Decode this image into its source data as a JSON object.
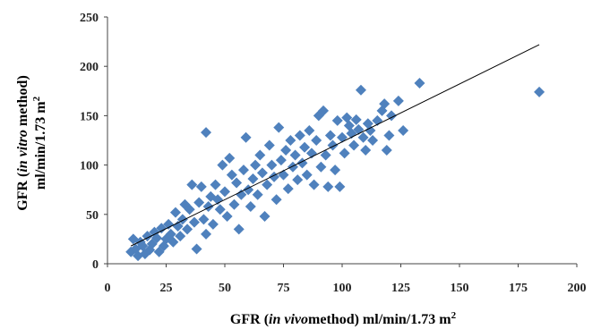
{
  "chart_data": {
    "type": "scatter",
    "title": "",
    "xlabel": {
      "prefix": "GFR  (",
      "italic": "in vivo",
      "suffix": "method)  ml/min/1.73 m",
      "sup": "2"
    },
    "ylabel": {
      "line1": {
        "prefix": "GFR (",
        "italic": "in vitro",
        "suffix": " method)"
      },
      "line2": {
        "text": "ml/min/1.73 m",
        "sup": "2"
      }
    },
    "xlim": [
      0,
      200
    ],
    "ylim": [
      0,
      250
    ],
    "x_ticks": [
      "0",
      "25",
      "50",
      "75",
      "100",
      "125",
      "150",
      "175",
      "200"
    ],
    "y_ticks": [
      "0",
      "50",
      "100",
      "150",
      "200",
      "250"
    ],
    "grid": false,
    "legend": "none",
    "marker_color": "#4f81bd",
    "trendline": {
      "x": [
        10,
        184
      ],
      "y": [
        18,
        222
      ]
    },
    "series": [
      {
        "points": [
          [
            10,
            12
          ],
          [
            11,
            25
          ],
          [
            12,
            15
          ],
          [
            13,
            8
          ],
          [
            14,
            22
          ],
          [
            15,
            18
          ],
          [
            16,
            10
          ],
          [
            17,
            28
          ],
          [
            18,
            14
          ],
          [
            19,
            20
          ],
          [
            20,
            32
          ],
          [
            21,
            26
          ],
          [
            22,
            12
          ],
          [
            23,
            36
          ],
          [
            24,
            18
          ],
          [
            25,
            25
          ],
          [
            26,
            40
          ],
          [
            27,
            30
          ],
          [
            28,
            22
          ],
          [
            29,
            52
          ],
          [
            30,
            38
          ],
          [
            31,
            28
          ],
          [
            32,
            45
          ],
          [
            33,
            60
          ],
          [
            34,
            35
          ],
          [
            35,
            55
          ],
          [
            36,
            80
          ],
          [
            37,
            42
          ],
          [
            38,
            15
          ],
          [
            39,
            62
          ],
          [
            40,
            78
          ],
          [
            41,
            45
          ],
          [
            42,
            30
          ],
          [
            42,
            133
          ],
          [
            43,
            58
          ],
          [
            44,
            68
          ],
          [
            45,
            40
          ],
          [
            46,
            80
          ],
          [
            47,
            65
          ],
          [
            48,
            55
          ],
          [
            49,
            100
          ],
          [
            50,
            73
          ],
          [
            51,
            48
          ],
          [
            52,
            107
          ],
          [
            53,
            90
          ],
          [
            54,
            60
          ],
          [
            55,
            82
          ],
          [
            56,
            35
          ],
          [
            57,
            70
          ],
          [
            58,
            95
          ],
          [
            59,
            128
          ],
          [
            60,
            75
          ],
          [
            61,
            58
          ],
          [
            62,
            86
          ],
          [
            63,
            100
          ],
          [
            64,
            70
          ],
          [
            65,
            110
          ],
          [
            66,
            92
          ],
          [
            67,
            48
          ],
          [
            68,
            80
          ],
          [
            69,
            120
          ],
          [
            70,
            100
          ],
          [
            71,
            88
          ],
          [
            72,
            65
          ],
          [
            73,
            138
          ],
          [
            74,
            105
          ],
          [
            75,
            90
          ],
          [
            76,
            115
          ],
          [
            77,
            76
          ],
          [
            78,
            125
          ],
          [
            79,
            98
          ],
          [
            80,
            110
          ],
          [
            81,
            85
          ],
          [
            82,
            130
          ],
          [
            83,
            102
          ],
          [
            84,
            118
          ],
          [
            85,
            90
          ],
          [
            86,
            135
          ],
          [
            87,
            112
          ],
          [
            88,
            80
          ],
          [
            89,
            125
          ],
          [
            90,
            150
          ],
          [
            91,
            98
          ],
          [
            92,
            155
          ],
          [
            93,
            110
          ],
          [
            94,
            78
          ],
          [
            95,
            130
          ],
          [
            96,
            120
          ],
          [
            97,
            95
          ],
          [
            98,
            145
          ],
          [
            99,
            78
          ],
          [
            100,
            128
          ],
          [
            101,
            112
          ],
          [
            102,
            148
          ],
          [
            103,
            140
          ],
          [
            104,
            132
          ],
          [
            105,
            120
          ],
          [
            106,
            146
          ],
          [
            107,
            136
          ],
          [
            108,
            176
          ],
          [
            109,
            128
          ],
          [
            110,
            115
          ],
          [
            111,
            142
          ],
          [
            112,
            135
          ],
          [
            113,
            125
          ],
          [
            115,
            145
          ],
          [
            117,
            155
          ],
          [
            118,
            162
          ],
          [
            119,
            115
          ],
          [
            120,
            130
          ],
          [
            121,
            150
          ],
          [
            124,
            165
          ],
          [
            126,
            135
          ],
          [
            133,
            183
          ],
          [
            184,
            174
          ]
        ]
      }
    ]
  }
}
